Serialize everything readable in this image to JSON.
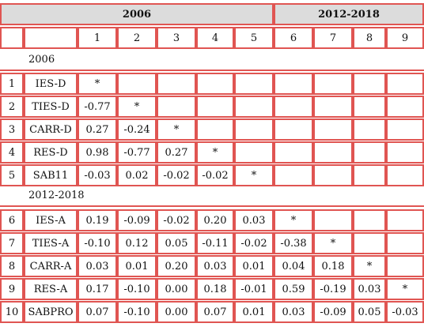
{
  "header": {
    "period_a": "2006",
    "period_b": "2012-2018"
  },
  "col_numbers": [
    "1",
    "2",
    "3",
    "4",
    "5",
    "6",
    "7",
    "8",
    "9"
  ],
  "sections": {
    "a": "2006",
    "b": "2012-2018"
  },
  "rows": [
    {
      "n": "1",
      "label": "IES-D",
      "cells": [
        "*",
        "",
        "",
        "",
        "",
        "",
        "",
        "",
        ""
      ]
    },
    {
      "n": "2",
      "label": "TIES-D",
      "cells": [
        "-0.77",
        "*",
        "",
        "",
        "",
        "",
        "",
        "",
        ""
      ]
    },
    {
      "n": "3",
      "label": "CARR-D",
      "cells": [
        "0.27",
        "-0.24",
        "*",
        "",
        "",
        "",
        "",
        "",
        ""
      ]
    },
    {
      "n": "4",
      "label": "RES-D",
      "cells": [
        "0.98",
        "-0.77",
        "0.27",
        "*",
        "",
        "",
        "",
        "",
        ""
      ]
    },
    {
      "n": "5",
      "label": "SAB11",
      "cells": [
        "-0.03",
        "0.02",
        "-0.02",
        "-0.02",
        "*",
        "",
        "",
        "",
        ""
      ]
    },
    {
      "n": "6",
      "label": "IES-A",
      "cells": [
        "0.19",
        "-0.09",
        "-0.02",
        "0.20",
        "0.03",
        "*",
        "",
        "",
        ""
      ]
    },
    {
      "n": "7",
      "label": "TIES-A",
      "cells": [
        "-0.10",
        "0.12",
        "0.05",
        "-0.11",
        "-0.02",
        "-0.38",
        "*",
        "",
        ""
      ]
    },
    {
      "n": "8",
      "label": "CARR-A",
      "cells": [
        "0.03",
        "0.01",
        "0.20",
        "0.03",
        "0.01",
        "0.04",
        "0.18",
        "*",
        ""
      ]
    },
    {
      "n": "9",
      "label": "RES-A",
      "cells": [
        "0.17",
        "-0.10",
        "0.00",
        "0.18",
        "-0.01",
        "0.59",
        "-0.19",
        "0.03",
        "*"
      ]
    },
    {
      "n": "10",
      "label": "SABPRO",
      "cells": [
        "0.07",
        "-0.10",
        "0.00",
        "0.07",
        "0.01",
        "0.03",
        "-0.09",
        "0.05",
        "-0.03"
      ]
    }
  ]
}
